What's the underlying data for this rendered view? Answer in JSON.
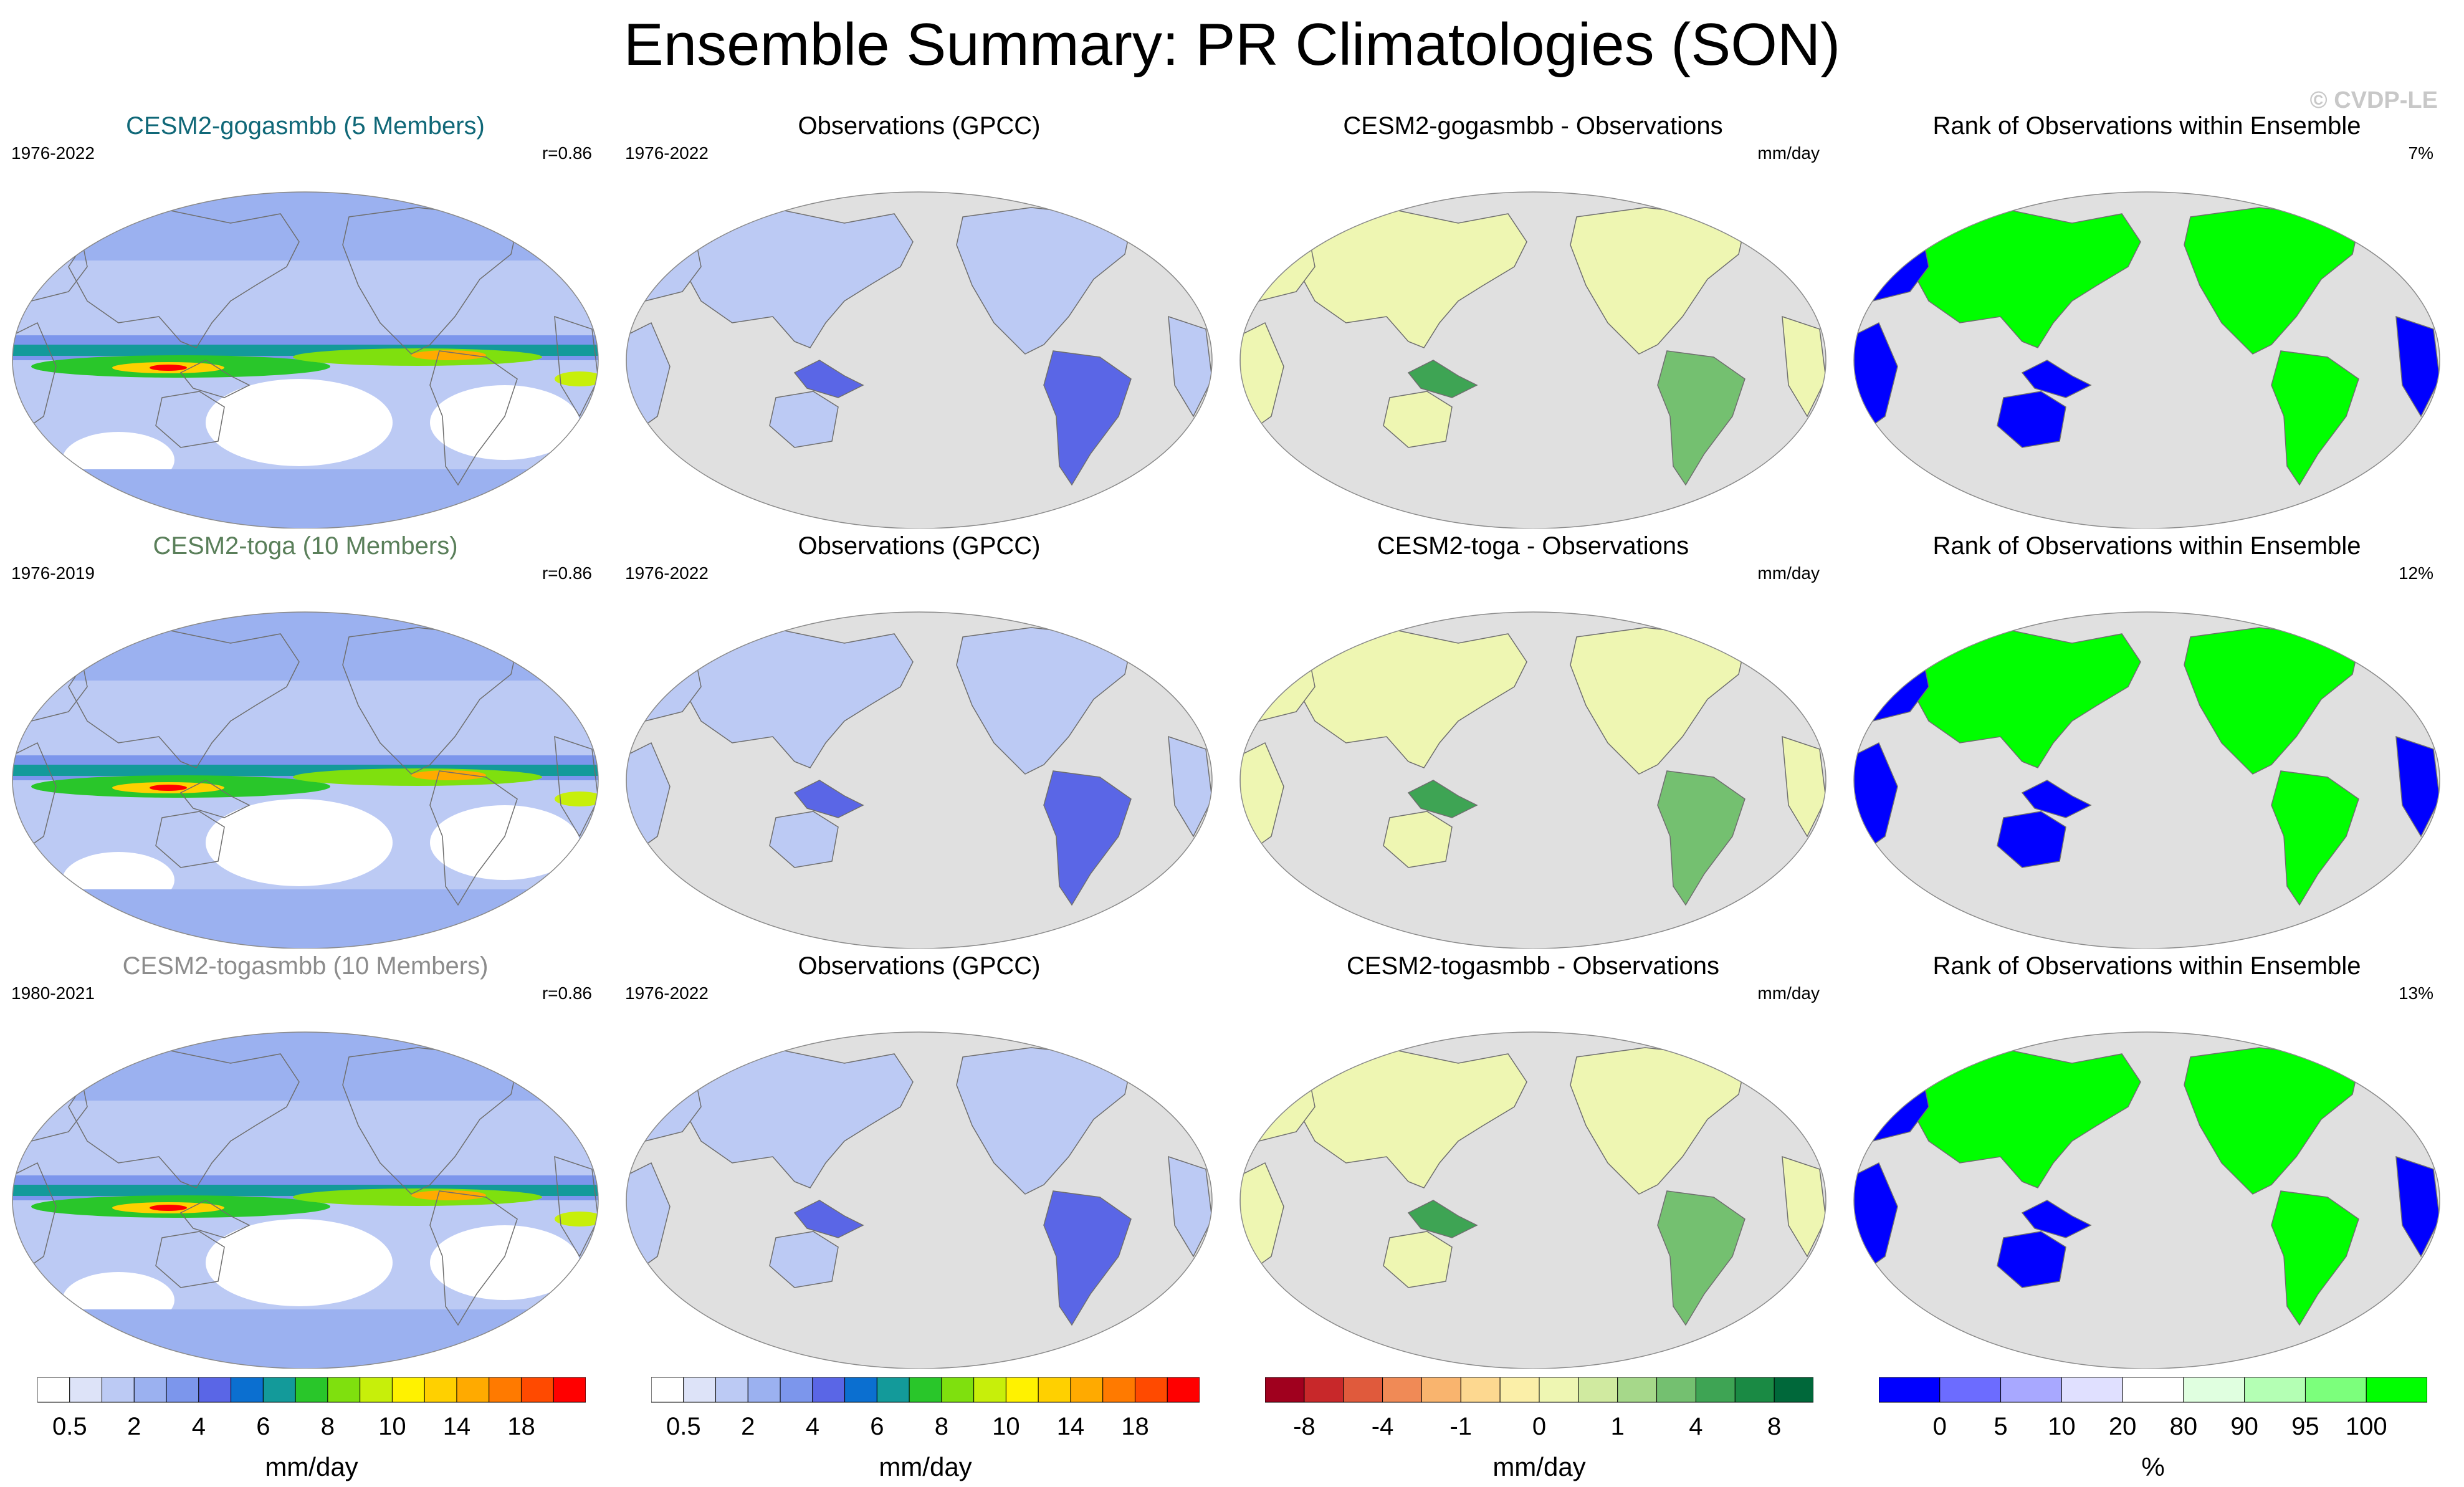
{
  "title": "Ensemble Summary: PR Climatologies (SON)",
  "watermark": "© CVDP-LE",
  "colors": {
    "model_title_1": "#106878",
    "model_title_2": "#5a7f5a",
    "model_title_3": "#8c8c8c",
    "land_gray": "#e0e0e0",
    "coast": "#6e6e6e"
  },
  "rows": [
    {
      "model": {
        "title": "CESM2-gogasmbb (5 Members)",
        "years": "1976-2022",
        "corner": "r=0.86"
      },
      "obs": {
        "title": "Observations (GPCC)",
        "years": "1976-2022"
      },
      "diff": {
        "title": "CESM2-gogasmbb - Observations",
        "corner": "mm/day"
      },
      "rank": {
        "title": "Rank of Observations within Ensemble",
        "corner": "7%"
      }
    },
    {
      "model": {
        "title": "CESM2-toga (10 Members)",
        "years": "1976-2019",
        "corner": "r=0.86"
      },
      "obs": {
        "title": "Observations (GPCC)",
        "years": "1976-2022"
      },
      "diff": {
        "title": "CESM2-toga - Observations",
        "corner": "mm/day"
      },
      "rank": {
        "title": "Rank of Observations within Ensemble",
        "corner": "12%"
      }
    },
    {
      "model": {
        "title": "CESM2-togasmbb (10 Members)",
        "years": "1980-2021",
        "corner": "r=0.86"
      },
      "obs": {
        "title": "Observations (GPCC)",
        "years": "1976-2022"
      },
      "diff": {
        "title": "CESM2-togasmbb - Observations",
        "corner": "mm/day"
      },
      "rank": {
        "title": "Rank of Observations within Ensemble",
        "corner": "13%"
      }
    }
  ],
  "chart_data": [
    {
      "type": "heatmap",
      "name": "precipitation colorbar",
      "label": "mm/day",
      "colors": [
        "#ffffff",
        "#dde3f8",
        "#bccaf4",
        "#9bb1f0",
        "#7c96ec",
        "#5a66e6",
        "#0b6fd0",
        "#139a9a",
        "#29c62a",
        "#7fe00e",
        "#c7ef0a",
        "#fff200",
        "#ffd000",
        "#ffaa00",
        "#ff7a00",
        "#ff4a00",
        "#ff0000"
      ],
      "tick_labels": [
        {
          "label": "0.5",
          "boundary": 1
        },
        {
          "label": "2",
          "boundary": 3
        },
        {
          "label": "4",
          "boundary": 5
        },
        {
          "label": "6",
          "boundary": 7
        },
        {
          "label": "8",
          "boundary": 9
        },
        {
          "label": "10",
          "boundary": 11
        },
        {
          "label": "14",
          "boundary": 13
        },
        {
          "label": "18",
          "boundary": 15
        }
      ]
    },
    {
      "type": "heatmap",
      "name": "difference colorbar",
      "label": "mm/day",
      "colors": [
        "#a0001e",
        "#c8282a",
        "#e05a3c",
        "#f08a56",
        "#f9b46e",
        "#fdd890",
        "#fbefa8",
        "#eef6b2",
        "#d0eaa0",
        "#a6d88a",
        "#74c070",
        "#3ea454",
        "#1a8a44",
        "#00683a"
      ],
      "tick_labels": [
        {
          "label": "-8",
          "boundary": 1
        },
        {
          "label": "-4",
          "boundary": 3
        },
        {
          "label": "-1",
          "boundary": 5
        },
        {
          "label": "0",
          "boundary": 7
        },
        {
          "label": "1",
          "boundary": 9
        },
        {
          "label": "4",
          "boundary": 11
        },
        {
          "label": "8",
          "boundary": 13
        }
      ]
    },
    {
      "type": "heatmap",
      "name": "rank colorbar",
      "label": "%",
      "colors": [
        "#0000ff",
        "#6c6cff",
        "#a8a8ff",
        "#e0e0ff",
        "#ffffff",
        "#e0ffe0",
        "#b4ffb4",
        "#7cff7c",
        "#00ff00"
      ],
      "tick_labels": [
        {
          "label": "0",
          "boundary": 1
        },
        {
          "label": "5",
          "boundary": 2
        },
        {
          "label": "10",
          "boundary": 3
        },
        {
          "label": "20",
          "boundary": 4
        },
        {
          "label": "80",
          "boundary": 5
        },
        {
          "label": "90",
          "boundary": 6
        },
        {
          "label": "95",
          "boundary": 7
        },
        {
          "label": "100",
          "boundary": 8
        }
      ]
    }
  ]
}
